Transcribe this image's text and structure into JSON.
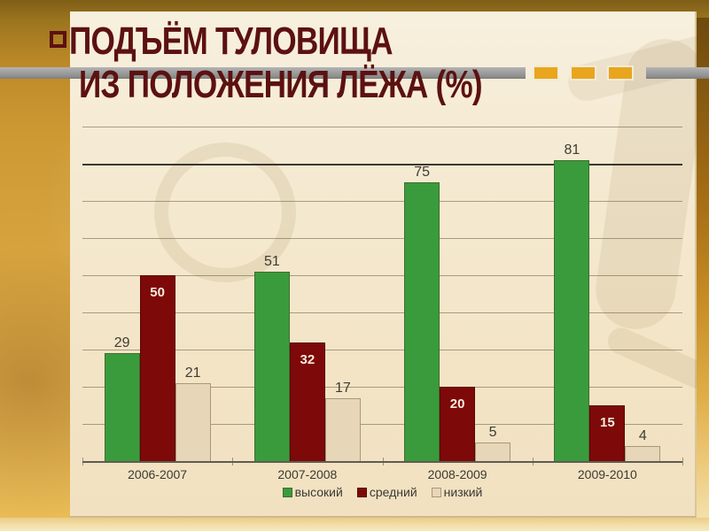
{
  "slide": {
    "title_line1": "ПОДЪЁМ ТУЛОВИЩА",
    "title_line2": "ИЗ ПОЛОЖЕНИЯ ЛЁЖА (%)",
    "title_color": "#5c1111",
    "divider": {
      "gray_color": "#9c9c9c",
      "dash_color": "#e9a51d",
      "dash_count": 3
    }
  },
  "chart_data": {
    "type": "bar",
    "title": "Подъём туловища из положения лёжа (%)",
    "categories": [
      "2006-2007",
      "2007-2008",
      "2008-2009",
      "2009-2010"
    ],
    "series": [
      {
        "name": "высокий",
        "color": "#3a9b3d",
        "border": "#3f6d2d",
        "values": [
          29,
          51,
          75,
          81
        ],
        "label_inside": false
      },
      {
        "name": "средний",
        "color": "#7d0909",
        "border": "#5a0707",
        "values": [
          50,
          32,
          20,
          15
        ],
        "label_inside": true,
        "label_color": "#f5ecdc"
      },
      {
        "name": "низкий",
        "color": "#e7d6b8",
        "border": "#a89878",
        "values": [
          21,
          17,
          5,
          4
        ],
        "label_inside": false
      }
    ],
    "ylim": [
      0,
      90
    ],
    "gridline_step": 10,
    "emphasized_gridline": 80,
    "grid": true,
    "legend_position": "bottom",
    "value_label_color": "#3f3b33"
  }
}
